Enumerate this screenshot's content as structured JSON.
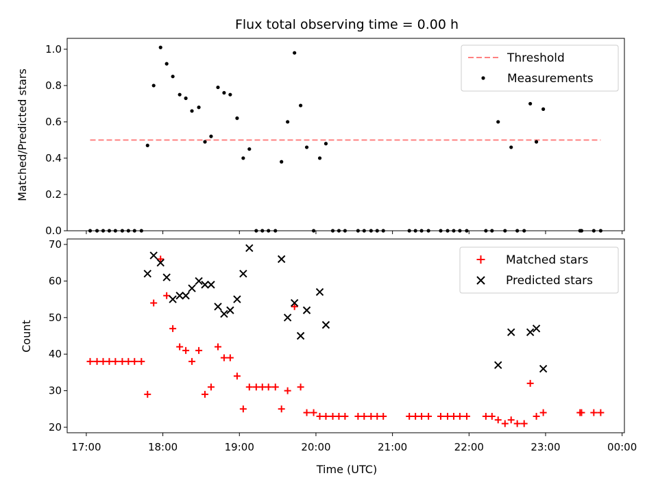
{
  "chart_data": {
    "type": "scatter",
    "title": "Flux total observing time = 0.00 h",
    "xlabel": "Time (UTC)",
    "x_ticks": [
      "17:00",
      "18:00",
      "19:00",
      "20:00",
      "21:00",
      "22:00",
      "23:00",
      "00:00"
    ],
    "x_range": [
      16.75,
      24.03
    ],
    "panels": [
      {
        "name": "ratio",
        "ylabel": "Matched/Predicted stars",
        "ylim": [
          0,
          1.06
        ],
        "y_ticks": [
          "0.0",
          "0.2",
          "0.4",
          "0.6",
          "0.8",
          "1.0"
        ],
        "y_tick_values": [
          0,
          0.2,
          0.4,
          0.6,
          0.8,
          1.0
        ],
        "legend_position": "upper-right",
        "threshold": {
          "label": "Threshold",
          "value": 0.5,
          "x_start": 17.05,
          "x_end": 23.72,
          "color": "#ff8080"
        },
        "series": [
          {
            "name": "Measurements",
            "marker": "dot",
            "color": "#000000",
            "x": [
              17.05,
              17.14,
              17.22,
              17.3,
              17.38,
              17.47,
              17.55,
              17.63,
              17.72,
              17.8,
              17.88,
              17.97,
              18.05,
              18.13,
              18.22,
              18.3,
              18.38,
              18.47,
              18.55,
              18.63,
              18.72,
              18.8,
              18.88,
              18.97,
              19.05,
              19.13,
              19.22,
              19.3,
              19.38,
              19.47,
              19.55,
              19.63,
              19.72,
              19.8,
              19.88,
              19.97,
              20.05,
              20.13,
              20.22,
              20.3,
              20.38,
              20.55,
              20.63,
              20.72,
              20.8,
              20.88,
              21.22,
              21.3,
              21.38,
              21.47,
              21.63,
              21.72,
              21.8,
              21.88,
              21.97,
              22.22,
              22.3,
              22.38,
              22.47,
              22.55,
              22.63,
              22.72,
              22.8,
              22.88,
              22.97,
              23.45,
              23.47,
              23.63,
              23.72
            ],
            "y": [
              0,
              0,
              0,
              0,
              0,
              0,
              0,
              0,
              0,
              0.47,
              0.8,
              1.01,
              0.92,
              0.85,
              0.75,
              0.73,
              0.66,
              0.68,
              0.49,
              0.52,
              0.79,
              0.76,
              0.75,
              0.62,
              0.4,
              0.45,
              0,
              0,
              0,
              0,
              0.38,
              0.6,
              0.98,
              0.69,
              0.46,
              0,
              0.4,
              0.48,
              0,
              0,
              0,
              0,
              0,
              0,
              0,
              0,
              0,
              0,
              0,
              0,
              0,
              0,
              0,
              0,
              0,
              0,
              0,
              0.6,
              0,
              0.46,
              0,
              0,
              0.7,
              0.49,
              0.67,
              0,
              0,
              0,
              0
            ]
          }
        ]
      },
      {
        "name": "counts",
        "ylabel": "Count",
        "ylim": [
          18.5,
          71.5
        ],
        "y_ticks": [
          "20",
          "30",
          "40",
          "50",
          "60",
          "70"
        ],
        "y_tick_values": [
          20,
          30,
          40,
          50,
          60,
          70
        ],
        "legend_position": "upper-right",
        "series": [
          {
            "name": "Matched stars",
            "marker": "plus",
            "color": "#ff0000",
            "x": [
              17.05,
              17.14,
              17.22,
              17.3,
              17.38,
              17.47,
              17.55,
              17.63,
              17.72,
              17.8,
              17.88,
              17.97,
              18.05,
              18.13,
              18.22,
              18.3,
              18.38,
              18.47,
              18.55,
              18.63,
              18.72,
              18.8,
              18.88,
              18.97,
              19.05,
              19.13,
              19.22,
              19.3,
              19.38,
              19.47,
              19.55,
              19.63,
              19.72,
              19.8,
              19.88,
              19.97,
              20.05,
              20.13,
              20.22,
              20.3,
              20.38,
              20.55,
              20.63,
              20.72,
              20.8,
              20.88,
              21.22,
              21.3,
              21.38,
              21.47,
              21.63,
              21.72,
              21.8,
              21.88,
              21.97,
              22.22,
              22.3,
              22.38,
              22.47,
              22.55,
              22.63,
              22.72,
              22.8,
              22.88,
              22.97,
              23.45,
              23.47,
              23.63,
              23.72
            ],
            "y": [
              38,
              38,
              38,
              38,
              38,
              38,
              38,
              38,
              38,
              29,
              54,
              66,
              56,
              47,
              42,
              41,
              38,
              41,
              29,
              31,
              42,
              39,
              39,
              34,
              25,
              31,
              31,
              31,
              31,
              31,
              25,
              30,
              53,
              31,
              24,
              24,
              23,
              23,
              23,
              23,
              23,
              23,
              23,
              23,
              23,
              23,
              23,
              23,
              23,
              23,
              23,
              23,
              23,
              23,
              23,
              23,
              23,
              22,
              21,
              22,
              21,
              21,
              32,
              23,
              24,
              24,
              24,
              24,
              24
            ]
          },
          {
            "name": "Predicted stars",
            "marker": "x",
            "color": "#000000",
            "x": [
              17.8,
              17.88,
              17.97,
              18.05,
              18.13,
              18.22,
              18.3,
              18.38,
              18.47,
              18.55,
              18.63,
              18.72,
              18.8,
              18.88,
              18.97,
              19.05,
              19.13,
              19.55,
              19.63,
              19.72,
              19.8,
              19.88,
              20.05,
              20.13,
              22.38,
              22.55,
              22.8,
              22.88,
              22.97
            ],
            "y": [
              62,
              67,
              65,
              61,
              55,
              56,
              56,
              58,
              60,
              59,
              59,
              53,
              51,
              52,
              55,
              62,
              69,
              66,
              50,
              54,
              45,
              52,
              57,
              48,
              37,
              46,
              46,
              47,
              36
            ]
          }
        ]
      }
    ]
  }
}
